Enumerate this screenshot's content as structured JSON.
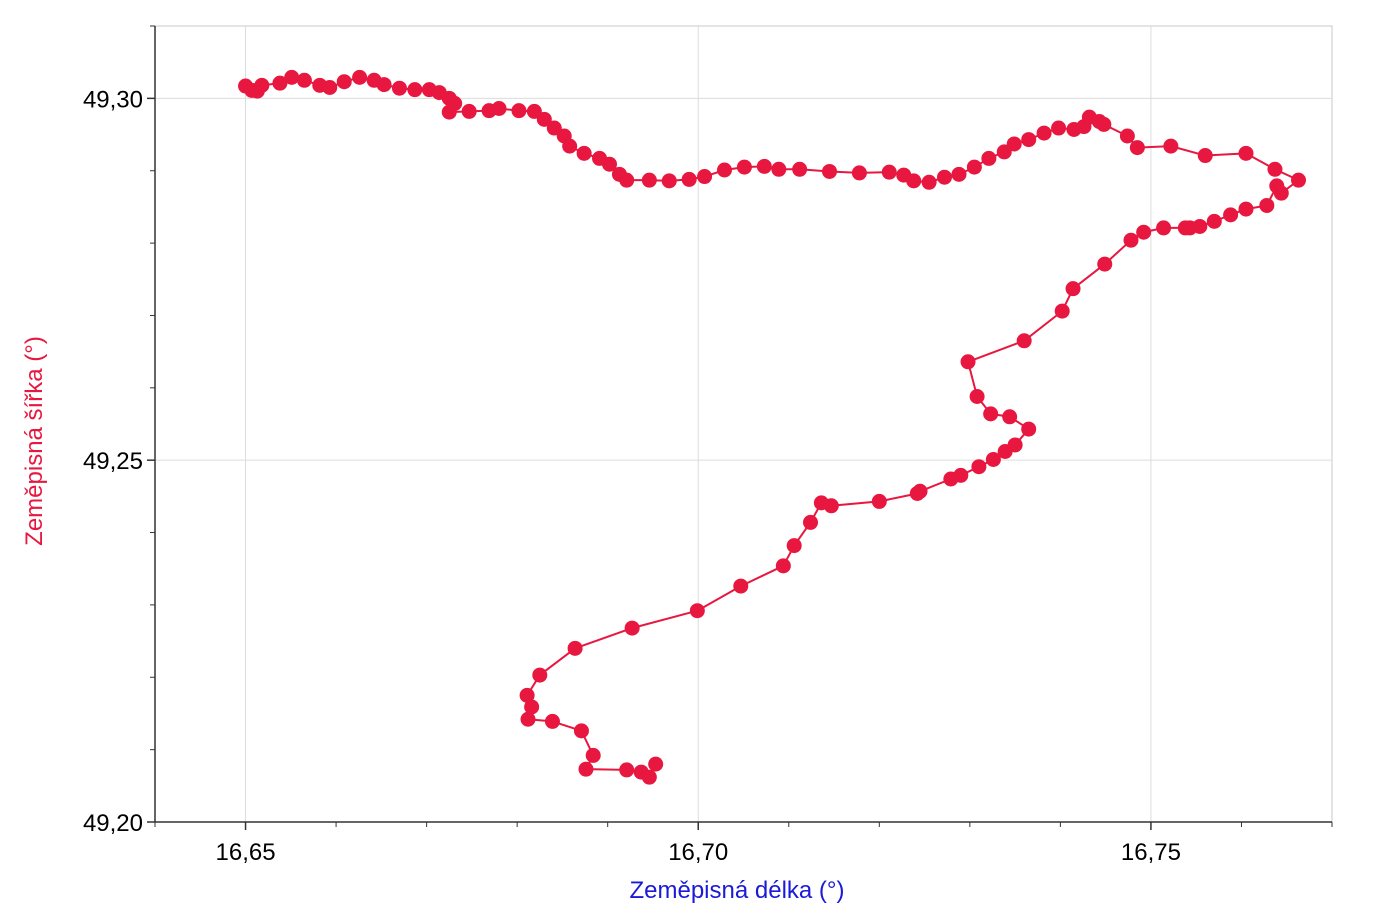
{
  "chart_data": {
    "type": "line",
    "xlabel": "Zeměpisná délka (°)",
    "ylabel": "Zeměpisná šířka (°)",
    "xlabel_color": "#1a1ad8",
    "ylabel_color": "#e8173f",
    "xlim": [
      16.64,
      16.77
    ],
    "ylim": [
      49.2,
      49.31
    ],
    "xticks": [
      {
        "value": 16.65,
        "label": "16,65"
      },
      {
        "value": 16.7,
        "label": "16,70"
      },
      {
        "value": 16.75,
        "label": "16,75"
      }
    ],
    "yticks": [
      {
        "value": 49.2,
        "label": "49,20"
      },
      {
        "value": 49.25,
        "label": "49,25"
      },
      {
        "value": 49.3,
        "label": "49,30"
      }
    ],
    "xminorticks": [
      16.64,
      16.66,
      16.67,
      16.68,
      16.69,
      16.71,
      16.72,
      16.73,
      16.74,
      16.76,
      16.77
    ],
    "yminorticks": [
      49.21,
      49.22,
      49.23,
      49.24,
      49.26,
      49.27,
      49.28,
      49.29,
      49.31
    ],
    "grid": true,
    "markers": true,
    "x": [
      16.65,
      16.6507,
      16.6513,
      16.6518,
      16.6538,
      16.6551,
      16.6565,
      16.6582,
      16.6593,
      16.6609,
      16.6626,
      16.6642,
      16.6653,
      16.667,
      16.6687,
      16.6703,
      16.6714,
      16.6725,
      16.6731,
      16.6725,
      16.6747,
      16.6769,
      16.678,
      16.6802,
      16.6819,
      16.683,
      16.6841,
      16.6852,
      16.6858,
      16.6874,
      16.6891,
      16.6902,
      16.6913,
      16.6921,
      16.6946,
      16.6968,
      16.699,
      16.7007,
      16.7029,
      16.7051,
      16.7073,
      16.7089,
      16.7112,
      16.7145,
      16.7178,
      16.7211,
      16.7227,
      16.7238,
      16.7255,
      16.7272,
      16.7288,
      16.7305,
      16.7321,
      16.7338,
      16.7349,
      16.7365,
      16.7382,
      16.7398,
      16.7415,
      16.7426,
      16.7432,
      16.7443,
      16.7448,
      16.7474,
      16.7485,
      16.7522,
      16.756,
      16.7605,
      16.7637,
      16.7663,
      16.7644,
      16.7639,
      16.7628,
      16.7605,
      16.7588,
      16.757,
      16.7554,
      16.7543,
      16.7538,
      16.7514,
      16.7492,
      16.7478,
      16.7449,
      16.7414,
      16.7402,
      16.736,
      16.7298,
      16.7308,
      16.7323,
      16.7344,
      16.7365,
      16.735,
      16.7339,
      16.7326,
      16.731,
      16.729,
      16.7279,
      16.7245,
      16.7242,
      16.72,
      16.7147,
      16.7136,
      16.7124,
      16.7106,
      16.7094,
      16.7047,
      16.6999,
      16.6927,
      16.6864,
      16.6825,
      16.6811,
      16.6816,
      16.6812,
      16.6839,
      16.6871,
      16.6884,
      16.6876,
      16.6921,
      16.6937,
      16.6946,
      16.6953
    ],
    "series": [
      {
        "color": "#e8173f",
        "values": [
          49.3017,
          49.3011,
          49.301,
          49.3018,
          49.3021,
          49.3029,
          49.3025,
          49.3018,
          49.3015,
          49.3023,
          49.3029,
          49.3025,
          49.3019,
          49.3014,
          49.3012,
          49.3012,
          49.3008,
          49.3,
          49.2993,
          49.2981,
          49.2982,
          49.2983,
          49.2986,
          49.2983,
          49.2982,
          49.2971,
          49.2959,
          49.2948,
          49.2934,
          49.2924,
          49.2917,
          49.2909,
          49.2895,
          49.2887,
          49.2887,
          49.2886,
          49.2888,
          49.2892,
          49.2901,
          49.2905,
          49.2906,
          49.2902,
          49.2902,
          49.2899,
          49.2897,
          49.2898,
          49.2894,
          49.2886,
          49.2884,
          49.2891,
          49.2895,
          49.2905,
          49.2917,
          49.2926,
          49.2937,
          49.2943,
          49.2952,
          49.2959,
          49.2957,
          49.2961,
          49.2974,
          49.2968,
          49.2964,
          49.2948,
          49.2932,
          49.2934,
          49.2921,
          49.2924,
          49.2902,
          49.2887,
          49.2869,
          49.2879,
          49.2852,
          49.2847,
          49.2839,
          49.283,
          49.2823,
          49.2821,
          49.2821,
          49.2821,
          49.2815,
          49.2804,
          49.2771,
          49.2737,
          49.2706,
          49.2665,
          49.2636,
          49.2588,
          49.2564,
          49.256,
          49.2543,
          49.2521,
          49.2512,
          49.2501,
          49.2491,
          49.2479,
          49.2474,
          49.2457,
          49.2454,
          49.2443,
          49.2437,
          49.2441,
          49.2414,
          49.2382,
          49.2354,
          49.2326,
          49.2292,
          49.2268,
          49.224,
          49.2203,
          49.2175,
          49.2159,
          49.2142,
          49.2139,
          49.2126,
          49.2092,
          49.2073,
          49.2072,
          49.2069,
          49.2062,
          49.208
        ]
      }
    ]
  }
}
